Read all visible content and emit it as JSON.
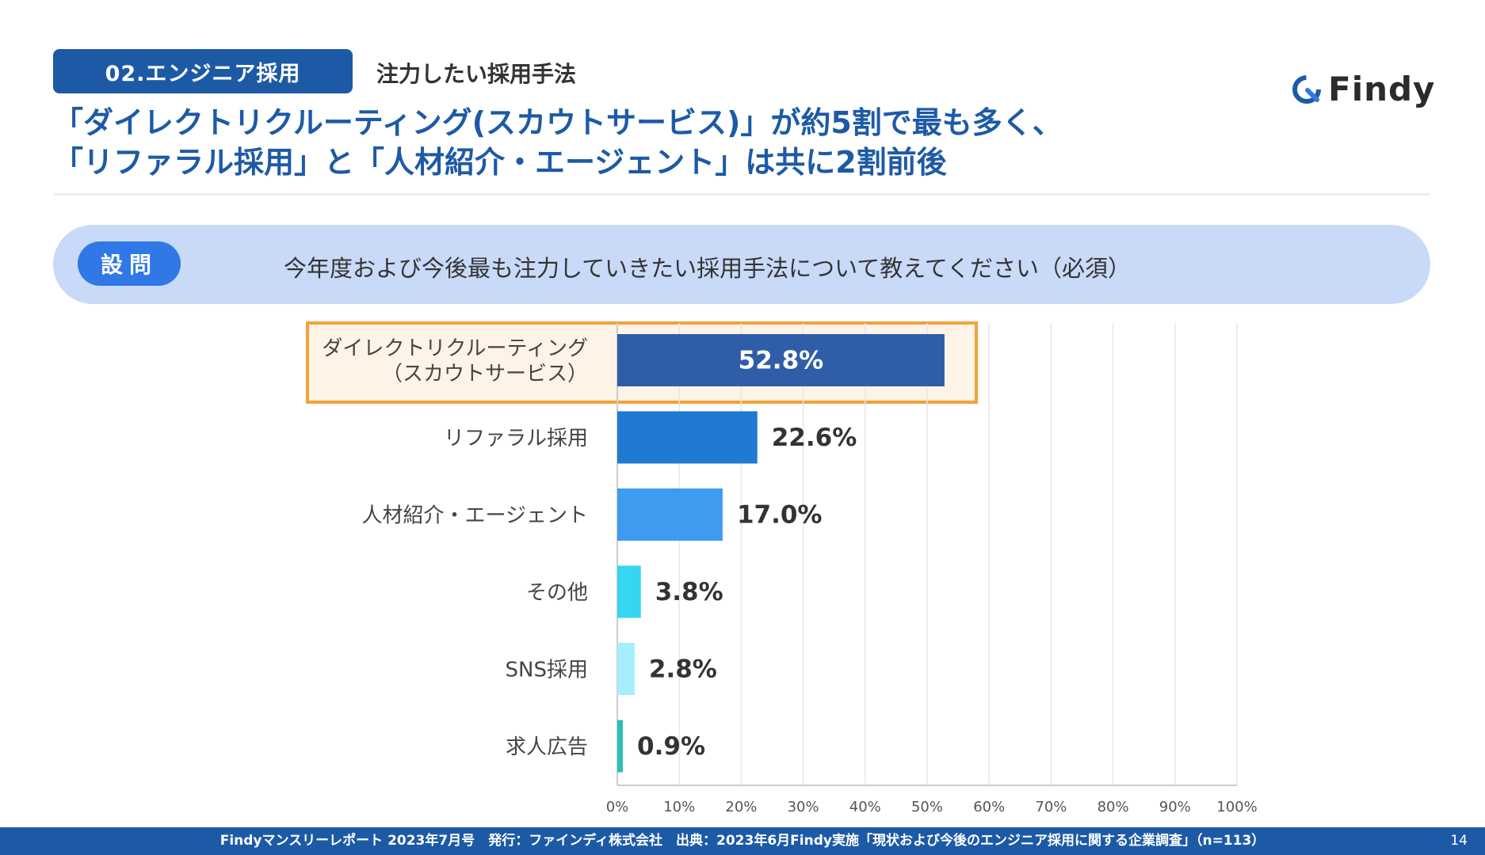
{
  "header": {
    "section_label": "02.エンジニア採用",
    "section_subtitle": "注力したい採用手法",
    "logo_text": "Findy",
    "headline_line1": "「ダイレクトリクルーティング(スカウトサービス)」が約5割で最も多く、",
    "headline_line2": "「リファラル採用」と「人材紹介・エージェント」は共に2割前後"
  },
  "question": {
    "tag": "設問",
    "text": "今年度および今後最も注力していきたい採用手法について教えてください（必須）"
  },
  "chart_data": {
    "type": "bar",
    "orientation": "horizontal",
    "categories": [
      [
        "ダイレクトリクルーティング",
        "（スカウトサービス）"
      ],
      [
        "リファラル採用"
      ],
      [
        "人材紹介・エージェント"
      ],
      [
        "その他"
      ],
      [
        "SNS採用"
      ],
      [
        "求人広告"
      ]
    ],
    "values": [
      52.8,
      22.6,
      17.0,
      3.8,
      2.8,
      0.9
    ],
    "value_labels": [
      "52.8%",
      "22.6%",
      "17.0%",
      "3.8%",
      "2.8%",
      "0.9%"
    ],
    "bar_colors": [
      "#2f5da8",
      "#2079d3",
      "#3d9cf0",
      "#35d6f2",
      "#a7eefc",
      "#2bc0b4"
    ],
    "highlight_index": 0,
    "highlight_border_color": "#f2a23c",
    "highlight_fill_color": "#fdf3e6",
    "xlim": [
      0,
      100
    ],
    "x_ticks": [
      "0%",
      "10%",
      "20%",
      "30%",
      "40%",
      "50%",
      "60%",
      "70%",
      "80%",
      "90%",
      "100%"
    ],
    "grid": true
  },
  "footer": {
    "text": "Findyマンスリーレポート 2023年7月号　発行：ファインディ株式会社　出典：2023年6月Findy実施「現状および今後のエンジニア採用に関する企業調査」（n=113）",
    "page_number": "14"
  },
  "colors": {
    "brand_blue": "#1d5aa6",
    "question_bg": "#c8daf7",
    "question_tag": "#2f78e6"
  }
}
